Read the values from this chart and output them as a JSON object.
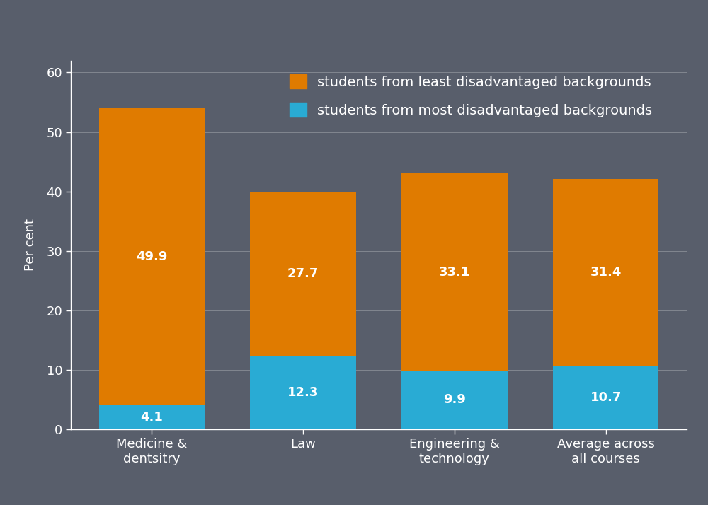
{
  "categories": [
    "Medicine &\ndentsitry",
    "Law",
    "Engineering &\ntechnology",
    "Average across\nall courses"
  ],
  "least_disadvantaged": [
    49.9,
    27.7,
    33.1,
    31.4
  ],
  "most_disadvantaged": [
    4.1,
    12.3,
    9.9,
    10.7
  ],
  "color_least": "#E07B00",
  "color_most": "#29ABD4",
  "ylabel": "Per cent",
  "ylim": [
    0,
    62
  ],
  "yticks": [
    0,
    10,
    20,
    30,
    40,
    50,
    60
  ],
  "background_color": "#585e6b",
  "legend_label_least": "students from least disadvantaged backgrounds",
  "legend_label_most": "students from most disadvantaged backgrounds",
  "bar_width": 0.7,
  "text_color_bars": "#ffffff",
  "label_fontsize": 13,
  "legend_fontsize": 14,
  "tick_fontsize": 13,
  "ylabel_fontsize": 13
}
